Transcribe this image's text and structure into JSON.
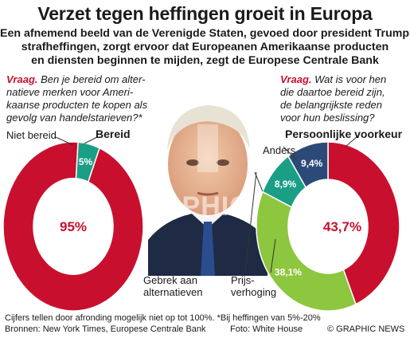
{
  "title": "Verzet tegen heffingen groeit in Europa",
  "subtitle_lines": [
    "Een afnemend beeld van de Verenigde Staten, gevoed door president Trumps",
    "strafheffingen, zorgt ervoor dat Europeanen Amerikaanse producten",
    "en diensten beginnen te mijden, zegt de Europese Centrale Bank"
  ],
  "left_question": {
    "label": "Vraag.",
    "lines": [
      " Ben je bereid om alter-",
      "natieve merken voor Ameri-",
      "kaanse producten te kopen als",
      "gevolg van handelstarieven?*"
    ]
  },
  "right_question": {
    "label": "Vraag.",
    "lines": [
      " Wat is voor hen",
      "die daartoe bereid zijn,",
      "de belangrijkste reden",
      "voor hun beslissing?"
    ]
  },
  "colors": {
    "red": "#c8102e",
    "teal": "#1a9e86",
    "navy": "#2b4a78",
    "green": "#8dc63f",
    "title_text": "#1a1a1a"
  },
  "photo": {
    "icon": "portrait-photo"
  },
  "watermark": "GRAPHIC NEWS",
  "chart_data": [
    {
      "type": "pie",
      "donut": true,
      "slices": [
        {
          "label": "Bereid",
          "value": 95,
          "display": "95%",
          "color": "#c8102e"
        },
        {
          "label": "Niet bereid",
          "value": 5,
          "display": "5%",
          "color": "#1a9e86"
        }
      ]
    },
    {
      "type": "pie",
      "donut": true,
      "slices": [
        {
          "label": "Persoonlijke voorkeur",
          "value": 43.7,
          "display": "43,7%",
          "color": "#c8102e"
        },
        {
          "label": "Prijs-verhoging",
          "label_lines": [
            "Prijs-",
            "verhoging"
          ],
          "value": 38.1,
          "display": "38,1%",
          "color": "#8dc63f"
        },
        {
          "label": "Gebrek aan alternatieven",
          "label_lines": [
            "Gebrek aan",
            "alternatieven"
          ],
          "value": 8.9,
          "display": "8,9%",
          "color": "#1a9e86"
        },
        {
          "label": "Anders",
          "value": 9.4,
          "display": "9,4%",
          "color": "#2b4a78"
        }
      ]
    }
  ],
  "footer": {
    "note": "Cijfers tellen door afronding mogelijk niet op tot 100%. *Bij heffingen van 5%-20%",
    "sources": "Bronnen: New York Times, Europese Centrale Bank",
    "photo_credit": "Foto: White House",
    "copyright": "© GRAPHIC NEWS"
  }
}
